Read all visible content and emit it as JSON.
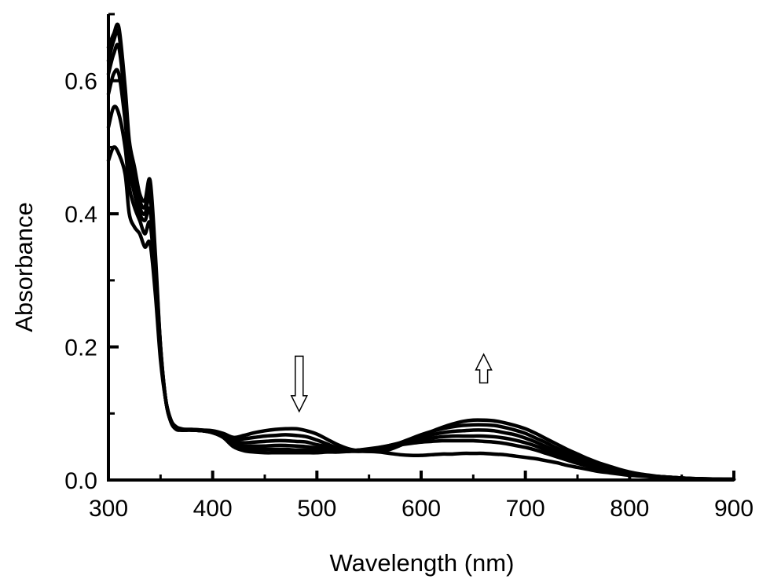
{
  "chart_data": {
    "type": "line",
    "title": "",
    "xlabel": "Wavelength (nm)",
    "ylabel": "Absorbance",
    "xlim": [
      300,
      900
    ],
    "ylim": [
      0.0,
      0.7
    ],
    "xticks": [
      "300",
      "400",
      "500",
      "600",
      "700",
      "800",
      "900"
    ],
    "yticks": [
      "0.0",
      "0.2",
      "0.4",
      "0.6"
    ],
    "grid": false,
    "line_color": "#000000",
    "annotations": [
      {
        "type": "arrow",
        "direction": "down",
        "x": 483,
        "y_top": 0.186,
        "y_bottom": 0.103
      },
      {
        "type": "arrow",
        "direction": "up",
        "x": 660,
        "y_bottom": 0.146,
        "y_top": 0.189
      }
    ],
    "series": [
      {
        "x": [
          300,
          305,
          310,
          316,
          320,
          325,
          330,
          335,
          340,
          345,
          350,
          355,
          360,
          365,
          370,
          375,
          380,
          390,
          400,
          410,
          420,
          430,
          440,
          450,
          460,
          470,
          480,
          490,
          500,
          510,
          520,
          530,
          540,
          550,
          560,
          570,
          580,
          590,
          600,
          610,
          620,
          630,
          640,
          650,
          660,
          670,
          680,
          690,
          700,
          710,
          720,
          730,
          740,
          750,
          760,
          770,
          780,
          790,
          800,
          810,
          820,
          830,
          840,
          850,
          860,
          870,
          880,
          890,
          900
        ],
        "y": [
          0.48,
          0.5,
          0.49,
          0.46,
          0.4,
          0.38,
          0.37,
          0.35,
          0.355,
          0.28,
          0.18,
          0.12,
          0.09,
          0.08,
          0.077,
          0.076,
          0.076,
          0.075,
          0.074,
          0.07,
          0.064,
          0.067,
          0.071,
          0.074,
          0.076,
          0.077,
          0.077,
          0.074,
          0.069,
          0.061,
          0.053,
          0.047,
          0.044,
          0.043,
          0.043,
          0.046,
          0.052,
          0.059,
          0.066,
          0.073,
          0.079,
          0.084,
          0.088,
          0.09,
          0.09,
          0.089,
          0.086,
          0.082,
          0.077,
          0.07,
          0.062,
          0.054,
          0.046,
          0.039,
          0.032,
          0.026,
          0.021,
          0.016,
          0.012,
          0.009,
          0.007,
          0.005,
          0.004,
          0.003,
          0.002,
          0.0018,
          0.0015,
          0.0012,
          0.001
        ]
      },
      {
        "x": [
          300,
          305,
          310,
          316,
          320,
          325,
          330,
          335,
          340,
          345,
          350,
          355,
          360,
          365,
          370,
          375,
          380,
          390,
          400,
          410,
          420,
          430,
          440,
          450,
          460,
          470,
          480,
          490,
          500,
          510,
          520,
          530,
          540,
          550,
          560,
          570,
          580,
          590,
          600,
          610,
          620,
          630,
          640,
          650,
          660,
          670,
          680,
          690,
          700,
          710,
          720,
          730,
          740,
          750,
          760,
          770,
          780,
          790,
          800,
          810,
          820,
          830,
          840,
          850,
          860,
          870,
          880,
          890,
          900
        ],
        "y": [
          0.53,
          0.56,
          0.55,
          0.5,
          0.44,
          0.41,
          0.39,
          0.37,
          0.385,
          0.3,
          0.19,
          0.12,
          0.09,
          0.079,
          0.076,
          0.076,
          0.076,
          0.075,
          0.073,
          0.069,
          0.061,
          0.062,
          0.064,
          0.066,
          0.067,
          0.068,
          0.067,
          0.065,
          0.06,
          0.054,
          0.048,
          0.045,
          0.044,
          0.044,
          0.046,
          0.05,
          0.056,
          0.062,
          0.068,
          0.073,
          0.077,
          0.08,
          0.082,
          0.083,
          0.083,
          0.082,
          0.079,
          0.075,
          0.07,
          0.063,
          0.056,
          0.048,
          0.041,
          0.035,
          0.029,
          0.023,
          0.018,
          0.014,
          0.011,
          0.008,
          0.006,
          0.005,
          0.004,
          0.003,
          0.0022,
          0.0017,
          0.0014,
          0.0011,
          0.001
        ]
      },
      {
        "x": [
          300,
          305,
          310,
          316,
          320,
          325,
          330,
          335,
          340,
          345,
          350,
          355,
          360,
          365,
          370,
          375,
          380,
          390,
          400,
          410,
          420,
          430,
          440,
          450,
          460,
          470,
          480,
          490,
          500,
          510,
          520,
          530,
          540,
          550,
          560,
          570,
          580,
          590,
          600,
          610,
          620,
          630,
          640,
          650,
          660,
          670,
          680,
          690,
          700,
          710,
          720,
          730,
          740,
          750,
          760,
          770,
          780,
          790,
          800,
          810,
          820,
          830,
          840,
          850,
          860,
          870,
          880,
          890,
          900
        ],
        "y": [
          0.58,
          0.61,
          0.61,
          0.54,
          0.47,
          0.43,
          0.4,
          0.39,
          0.405,
          0.31,
          0.19,
          0.12,
          0.088,
          0.078,
          0.075,
          0.075,
          0.075,
          0.074,
          0.072,
          0.067,
          0.058,
          0.056,
          0.057,
          0.058,
          0.059,
          0.059,
          0.058,
          0.057,
          0.053,
          0.05,
          0.046,
          0.044,
          0.044,
          0.045,
          0.048,
          0.052,
          0.056,
          0.061,
          0.065,
          0.068,
          0.071,
          0.073,
          0.074,
          0.075,
          0.075,
          0.074,
          0.071,
          0.068,
          0.063,
          0.057,
          0.05,
          0.043,
          0.037,
          0.031,
          0.026,
          0.021,
          0.016,
          0.013,
          0.01,
          0.008,
          0.006,
          0.005,
          0.004,
          0.003,
          0.0022,
          0.0017,
          0.0014,
          0.0011,
          0.001
        ]
      },
      {
        "x": [
          300,
          305,
          310,
          316,
          320,
          325,
          330,
          335,
          340,
          345,
          350,
          355,
          360,
          365,
          370,
          375,
          380,
          390,
          400,
          410,
          420,
          430,
          440,
          450,
          460,
          470,
          480,
          490,
          500,
          510,
          520,
          530,
          540,
          550,
          560,
          570,
          580,
          590,
          600,
          610,
          620,
          630,
          640,
          650,
          660,
          670,
          680,
          690,
          700,
          710,
          720,
          730,
          740,
          750,
          760,
          770,
          780,
          790,
          800,
          810,
          820,
          830,
          840,
          850,
          860,
          870,
          880,
          890,
          900
        ],
        "y": [
          0.61,
          0.64,
          0.65,
          0.57,
          0.49,
          0.45,
          0.41,
          0.4,
          0.425,
          0.32,
          0.2,
          0.12,
          0.088,
          0.077,
          0.075,
          0.075,
          0.075,
          0.074,
          0.072,
          0.066,
          0.055,
          0.051,
          0.051,
          0.051,
          0.052,
          0.052,
          0.051,
          0.05,
          0.048,
          0.046,
          0.045,
          0.044,
          0.045,
          0.046,
          0.049,
          0.052,
          0.055,
          0.058,
          0.061,
          0.063,
          0.065,
          0.066,
          0.066,
          0.066,
          0.066,
          0.065,
          0.063,
          0.06,
          0.056,
          0.051,
          0.045,
          0.039,
          0.033,
          0.028,
          0.023,
          0.019,
          0.015,
          0.012,
          0.009,
          0.007,
          0.006,
          0.005,
          0.004,
          0.003,
          0.0022,
          0.0017,
          0.0014,
          0.0011,
          0.001
        ]
      },
      {
        "x": [
          300,
          305,
          310,
          316,
          320,
          325,
          330,
          335,
          340,
          345,
          350,
          355,
          360,
          365,
          370,
          375,
          380,
          390,
          400,
          410,
          420,
          430,
          440,
          450,
          460,
          470,
          480,
          490,
          500,
          510,
          520,
          530,
          540,
          550,
          560,
          570,
          580,
          590,
          600,
          610,
          620,
          630,
          640,
          650,
          660,
          670,
          680,
          690,
          700,
          710,
          720,
          730,
          740,
          750,
          760,
          770,
          780,
          790,
          800,
          810,
          820,
          830,
          840,
          850,
          860,
          870,
          880,
          890,
          900
        ],
        "y": [
          0.63,
          0.66,
          0.67,
          0.58,
          0.5,
          0.46,
          0.42,
          0.41,
          0.44,
          0.33,
          0.2,
          0.12,
          0.087,
          0.077,
          0.075,
          0.075,
          0.075,
          0.074,
          0.071,
          0.065,
          0.052,
          0.047,
          0.046,
          0.046,
          0.046,
          0.046,
          0.045,
          0.045,
          0.044,
          0.043,
          0.043,
          0.043,
          0.045,
          0.047,
          0.049,
          0.051,
          0.053,
          0.055,
          0.057,
          0.058,
          0.059,
          0.059,
          0.059,
          0.059,
          0.058,
          0.057,
          0.055,
          0.052,
          0.049,
          0.045,
          0.04,
          0.035,
          0.03,
          0.025,
          0.021,
          0.017,
          0.014,
          0.011,
          0.009,
          0.007,
          0.005,
          0.004,
          0.003,
          0.0025,
          0.002,
          0.0016,
          0.0013,
          0.001,
          0.001
        ]
      },
      {
        "x": [
          300,
          305,
          310,
          316,
          320,
          325,
          330,
          335,
          340,
          345,
          350,
          355,
          360,
          365,
          370,
          375,
          380,
          390,
          400,
          410,
          420,
          430,
          440,
          450,
          460,
          470,
          480,
          490,
          500,
          510,
          520,
          530,
          540,
          550,
          560,
          570,
          580,
          590,
          600,
          610,
          620,
          630,
          640,
          650,
          660,
          670,
          680,
          690,
          700,
          710,
          720,
          730,
          740,
          750,
          760,
          770,
          780,
          790,
          800,
          810,
          820,
          830,
          840,
          850,
          860,
          870,
          880,
          890,
          900
        ],
        "y": [
          0.65,
          0.67,
          0.68,
          0.59,
          0.51,
          0.47,
          0.43,
          0.42,
          0.45,
          0.34,
          0.2,
          0.12,
          0.087,
          0.076,
          0.075,
          0.075,
          0.075,
          0.074,
          0.071,
          0.064,
          0.05,
          0.044,
          0.042,
          0.041,
          0.041,
          0.041,
          0.041,
          0.041,
          0.041,
          0.042,
          0.042,
          0.043,
          0.043,
          0.043,
          0.042,
          0.04,
          0.038,
          0.037,
          0.037,
          0.038,
          0.039,
          0.039,
          0.04,
          0.04,
          0.04,
          0.039,
          0.038,
          0.036,
          0.034,
          0.032,
          0.029,
          0.026,
          0.022,
          0.019,
          0.016,
          0.013,
          0.011,
          0.009,
          0.007,
          0.006,
          0.005,
          0.004,
          0.003,
          0.0025,
          0.002,
          0.0016,
          0.0013,
          0.001,
          0.001
        ]
      }
    ]
  }
}
